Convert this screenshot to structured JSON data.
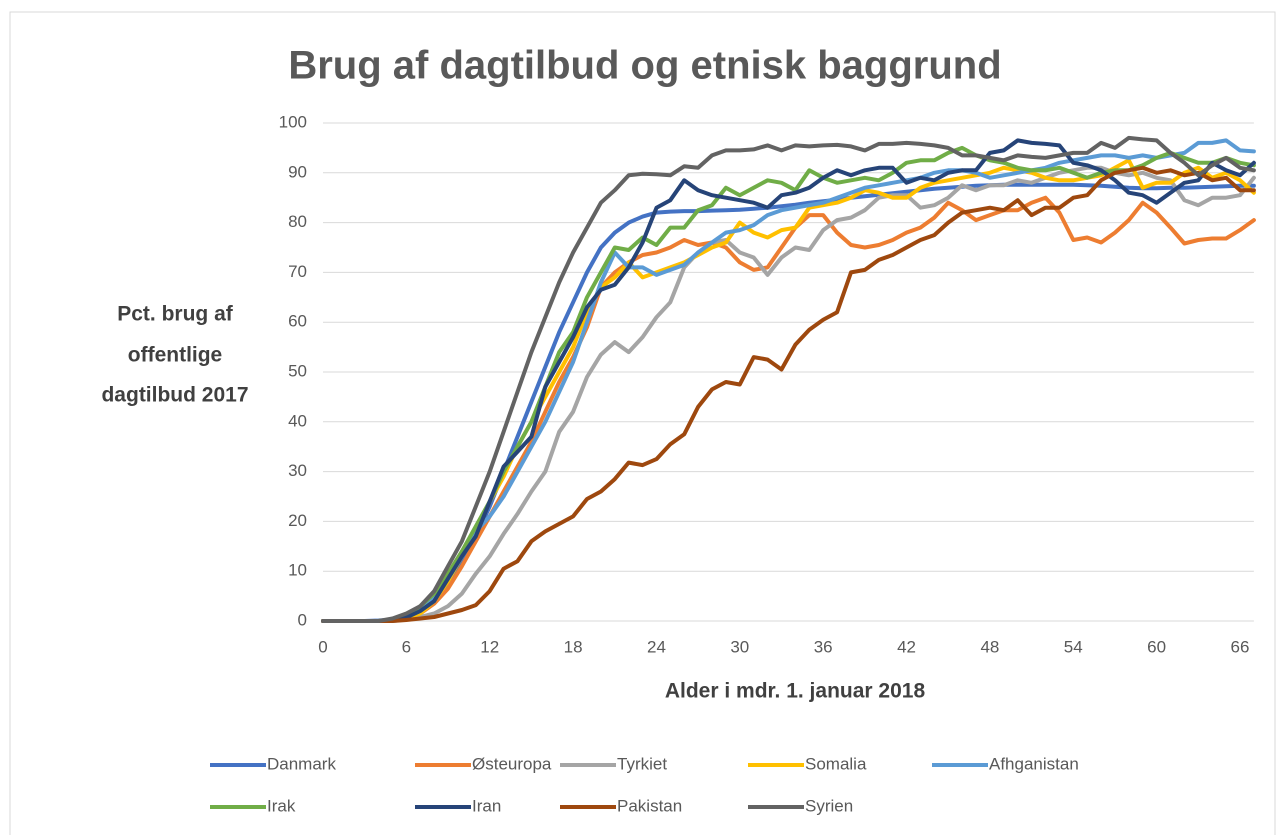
{
  "chart_data": {
    "type": "line",
    "title": "Brug af dagtilbud og etnisk baggrund",
    "ylabel": [
      "Pct. brug af",
      "offentlige",
      "dagtilbud 2017"
    ],
    "xlabel": "Alder i mdr. 1. januar 2018",
    "x": [
      0,
      1,
      2,
      3,
      4,
      5,
      6,
      7,
      8,
      9,
      10,
      11,
      12,
      13,
      14,
      15,
      16,
      17,
      18,
      19,
      20,
      21,
      22,
      23,
      24,
      25,
      26,
      27,
      28,
      29,
      30,
      31,
      32,
      33,
      34,
      35,
      36,
      37,
      38,
      39,
      40,
      41,
      42,
      43,
      44,
      45,
      46,
      47,
      48,
      49,
      50,
      51,
      52,
      53,
      54,
      55,
      56,
      57,
      58,
      59,
      60,
      61,
      62,
      63,
      64,
      65,
      66,
      67
    ],
    "xlim": [
      0,
      67
    ],
    "xticks": [
      0,
      6,
      12,
      18,
      24,
      30,
      36,
      42,
      48,
      54,
      60,
      66
    ],
    "ylim": [
      0,
      100
    ],
    "yticks": [
      0,
      10,
      20,
      30,
      40,
      50,
      60,
      70,
      80,
      90,
      100
    ],
    "grid": true,
    "legend": "bottom",
    "series": [
      {
        "name": "Danmark",
        "color": "#4472c4",
        "values": [
          0,
          0,
          0,
          0,
          0.1,
          0.3,
          0.8,
          2,
          4,
          7.5,
          12,
          17,
          23,
          30,
          37,
          44,
          51,
          58,
          64,
          70,
          75,
          78,
          80,
          81.2,
          82,
          82.2,
          82.3,
          82.3,
          82.4,
          82.5,
          82.6,
          82.8,
          83,
          83.3,
          83.6,
          84,
          84.3,
          84.6,
          85,
          85.3,
          85.6,
          85.9,
          86.2,
          86.5,
          86.8,
          87,
          87.2,
          87.4,
          87.5,
          87.6,
          87.6,
          87.6,
          87.6,
          87.6,
          87.6,
          87.5,
          87.4,
          87.2,
          87,
          86.9,
          86.9,
          87,
          87,
          87.1,
          87.2,
          87.3,
          87.4,
          87.4
        ]
      },
      {
        "name": "Østeuropa",
        "color": "#ed7d31",
        "values": [
          0,
          0,
          0,
          0,
          0,
          0.2,
          0.5,
          1.5,
          3.5,
          6.5,
          11,
          16,
          21,
          26,
          31,
          36,
          42,
          48,
          53,
          59,
          67,
          70,
          72,
          73.5,
          74,
          75,
          76.5,
          75.5,
          76,
          75,
          72,
          70.5,
          71,
          75,
          79,
          81.5,
          81.5,
          78,
          75.5,
          75,
          75.5,
          76.5,
          78,
          79,
          81,
          84,
          82.5,
          80.5,
          81.5,
          82.5,
          82.5,
          84,
          85,
          82,
          76.5,
          77,
          76,
          78,
          80.5,
          84,
          82,
          79,
          75.8,
          76.5,
          76.8,
          76.8,
          78.5,
          80.5
        ]
      },
      {
        "name": "Tyrkiet",
        "color": "#a5a5a5",
        "values": [
          0,
          0,
          0,
          0,
          0,
          0,
          0.3,
          0.8,
          1.5,
          3,
          5.5,
          9.5,
          13,
          17.5,
          21.5,
          26,
          30,
          38,
          42,
          49,
          53.5,
          56,
          54,
          57,
          61,
          64,
          71,
          74,
          76,
          76.5,
          74,
          73,
          69.5,
          73,
          75,
          74.5,
          78.5,
          80.5,
          81,
          82.5,
          85,
          85.5,
          85.5,
          83,
          83.5,
          85,
          87.5,
          86.5,
          87.5,
          87.5,
          88.5,
          88,
          89,
          90,
          90.5,
          91,
          91,
          90,
          89.5,
          90,
          89,
          88.5,
          84.5,
          83.5,
          85,
          85,
          85.5,
          89
        ]
      },
      {
        "name": "Somalia",
        "color": "#ffc000",
        "values": [
          0,
          0,
          0,
          0,
          0,
          0.2,
          0.6,
          1.5,
          4,
          8,
          13,
          18,
          24,
          29,
          35,
          40,
          45,
          50,
          55,
          62,
          67,
          69,
          72,
          69,
          70,
          71,
          72,
          73.5,
          75,
          76,
          80,
          78,
          77,
          78.5,
          79,
          83,
          83.5,
          84,
          85,
          86.5,
          86,
          85,
          85,
          87,
          88,
          88.5,
          89,
          89.5,
          90,
          91,
          90.5,
          90,
          89,
          88.5,
          88.5,
          89,
          89.5,
          91,
          92.5,
          87,
          88,
          88,
          90,
          91,
          89,
          90,
          88.5,
          86
        ]
      },
      {
        "name": "Afhganistan",
        "color": "#5b9bd5",
        "values": [
          0,
          0,
          0,
          0,
          0,
          0.3,
          1,
          2.5,
          5,
          8.5,
          13,
          18,
          21,
          25,
          30,
          35,
          40,
          46,
          52,
          60,
          68,
          74,
          71,
          71,
          69.5,
          70.5,
          71.5,
          74,
          76,
          78,
          78.5,
          79.5,
          81.5,
          82.5,
          83,
          83.5,
          84,
          85,
          86,
          87,
          87.5,
          88,
          88.5,
          89,
          90,
          90.5,
          90.5,
          90,
          89,
          89.5,
          90,
          90.5,
          91,
          92,
          92.5,
          93,
          93.5,
          93.5,
          93,
          93.5,
          93,
          93.5,
          94,
          96,
          96,
          96.5,
          94.5,
          94.3
        ]
      },
      {
        "name": "Irak",
        "color": "#70ad47",
        "values": [
          0,
          0,
          0,
          0,
          0,
          0.3,
          1,
          3,
          5.5,
          9.5,
          14,
          19,
          24,
          30,
          35,
          40,
          47,
          54,
          58,
          65,
          70,
          75,
          74.5,
          77,
          75.5,
          79,
          79,
          82.5,
          83.5,
          87,
          85.5,
          87,
          88.5,
          88,
          86.5,
          90.5,
          89,
          88,
          88.5,
          89,
          88.5,
          90,
          92,
          92.5,
          92.5,
          94,
          95,
          93.5,
          92.5,
          92,
          91,
          90.5,
          90.5,
          91,
          90,
          89,
          90,
          90.5,
          90.5,
          91.5,
          93,
          94,
          93,
          92,
          92,
          93,
          92,
          91.5
        ]
      },
      {
        "name": "Iran",
        "color": "#264478",
        "values": [
          0,
          0,
          0,
          0,
          0,
          0.2,
          0.7,
          2,
          4,
          8.5,
          13,
          17,
          24,
          31,
          34,
          37,
          47,
          52,
          57,
          63,
          66.5,
          67.5,
          71,
          76,
          83,
          84.5,
          88.5,
          86.5,
          85.5,
          85,
          84.5,
          84,
          83,
          85.5,
          86,
          87,
          89,
          90.5,
          89.5,
          90.5,
          91,
          91,
          88,
          89,
          88.5,
          90,
          90.5,
          90.5,
          94,
          94.5,
          96.5,
          96,
          95.8,
          95.5,
          92,
          91.5,
          90.5,
          88.5,
          86,
          85.5,
          84,
          86,
          88,
          88.5,
          92,
          90.5,
          89.5,
          92
        ]
      },
      {
        "name": "Pakistan",
        "color": "#9e480e",
        "values": [
          0,
          0,
          0,
          0,
          0,
          0,
          0.2,
          0.5,
          0.8,
          1.5,
          2.2,
          3.2,
          6,
          10.5,
          12,
          16,
          18,
          19.5,
          21,
          24.5,
          26,
          28.5,
          31.8,
          31.3,
          32.5,
          35.5,
          37.5,
          43,
          46.5,
          48,
          47.5,
          53,
          52.5,
          50.5,
          55.5,
          58.5,
          60.5,
          62,
          70,
          70.5,
          72.5,
          73.5,
          75,
          76.5,
          77.5,
          80,
          82,
          82.5,
          83,
          82.5,
          84.5,
          81.5,
          83,
          83,
          85,
          85.5,
          88.5,
          90,
          90.5,
          91,
          90,
          90.5,
          89.5,
          90,
          88.5,
          89,
          86.5,
          86.5
        ]
      },
      {
        "name": "Syrien",
        "color": "#636363",
        "values": [
          0,
          0,
          0,
          0,
          0,
          0.5,
          1.5,
          3,
          6,
          11,
          16,
          23,
          30,
          38,
          46,
          54,
          61,
          68,
          74,
          79,
          84,
          86.5,
          89.5,
          89.8,
          89.7,
          89.5,
          91.3,
          91,
          93.5,
          94.5,
          94.5,
          94.7,
          95.5,
          94.5,
          95.5,
          95.3,
          95.5,
          95.6,
          95.3,
          94.5,
          95.8,
          95.8,
          96,
          95.8,
          95.5,
          95,
          93.5,
          93.5,
          93,
          92.5,
          93.5,
          93.2,
          93,
          93.5,
          94,
          94,
          96,
          95,
          97,
          96.7,
          96.5,
          94,
          92,
          89.5,
          91.5,
          93,
          91,
          90.5
        ]
      }
    ]
  }
}
